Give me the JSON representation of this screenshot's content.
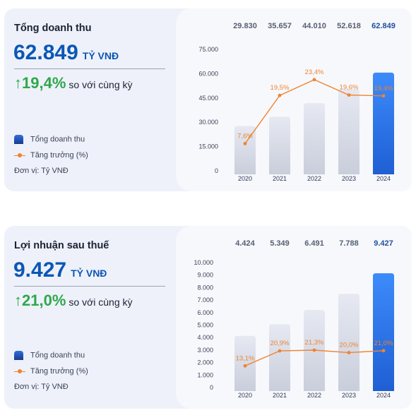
{
  "panels": [
    {
      "title": "Tổng doanh thu",
      "headline_value": "62.849",
      "headline_unit": "TỶ VNĐ",
      "growth_arrow": "↑",
      "growth_value": "19,4%",
      "growth_text": "so với cùng kỳ",
      "legend": {
        "bar_label": "Tổng doanh thu",
        "line_label": "Tăng trưởng (%)"
      },
      "unit_note": "Đơn vị: Tỷ VNĐ"
    },
    {
      "title": "Lợi nhuận sau thuế",
      "headline_value": "9.427",
      "headline_unit": "TỶ VNĐ",
      "growth_arrow": "↑",
      "growth_value": "21,0%",
      "growth_text": "so với cùng kỳ",
      "legend": {
        "bar_label": "Tổng doanh thu",
        "line_label": "Tăng trưởng (%)"
      },
      "unit_note": "Đơn vị: Tỷ VNĐ"
    }
  ],
  "colors": {
    "bar_gradient_top": "#e6e9f2",
    "bar_gradient_bottom": "#c9cedb",
    "highlight_top": "#3d8bfa",
    "highlight_bottom": "#1f5fd4",
    "line": "#f0832f",
    "headline": "#0b57b6",
    "growth": "#2ea84a"
  },
  "chart_data": [
    {
      "type": "bar",
      "categories": [
        "2020",
        "2021",
        "2022",
        "2023",
        "2024"
      ],
      "series": [
        {
          "name": "Tổng doanh thu",
          "values": [
            29830,
            35657,
            44010,
            52618,
            62849
          ]
        },
        {
          "name": "Tăng trưởng (%)",
          "type": "line",
          "values": [
            7.6,
            19.5,
            23.4,
            19.6,
            19.4
          ]
        }
      ],
      "value_labels": [
        "29.830",
        "35.657",
        "44.010",
        "52.618",
        "62.849"
      ],
      "growth_labels": [
        "7,6%",
        "19,5%",
        "23,4%",
        "19,6%",
        "19,4%"
      ],
      "y_ticks": [
        "0",
        "15.000",
        "30.000",
        "45.000",
        "60.000",
        "75.000"
      ],
      "ylim": [
        0,
        75000
      ],
      "line_ylim": [
        0,
        30
      ],
      "highlight_last": true,
      "grid": false
    },
    {
      "type": "bar",
      "categories": [
        "2020",
        "2021",
        "2022",
        "2023",
        "2024"
      ],
      "series": [
        {
          "name": "Tổng doanh thu",
          "values": [
            4424,
            5349,
            6491,
            7788,
            9427
          ]
        },
        {
          "name": "Tăng trưởng (%)",
          "type": "line",
          "values": [
            13.1,
            20.9,
            21.3,
            20.0,
            21.0
          ]
        }
      ],
      "value_labels": [
        "4.424",
        "5.349",
        "6.491",
        "7.788",
        "9.427"
      ],
      "growth_labels": [
        "13,1%",
        "20,9%",
        "21,3%",
        "20,0%",
        "21,0%"
      ],
      "y_ticks": [
        "0",
        "1.000",
        "2.000",
        "3.000",
        "4.000",
        "5.000",
        "6.000",
        "7.000",
        "8.000",
        "9.000",
        "10.000"
      ],
      "ylim": [
        0,
        10000
      ],
      "line_ylim": [
        0,
        65
      ],
      "highlight_last": true,
      "grid": false
    }
  ]
}
